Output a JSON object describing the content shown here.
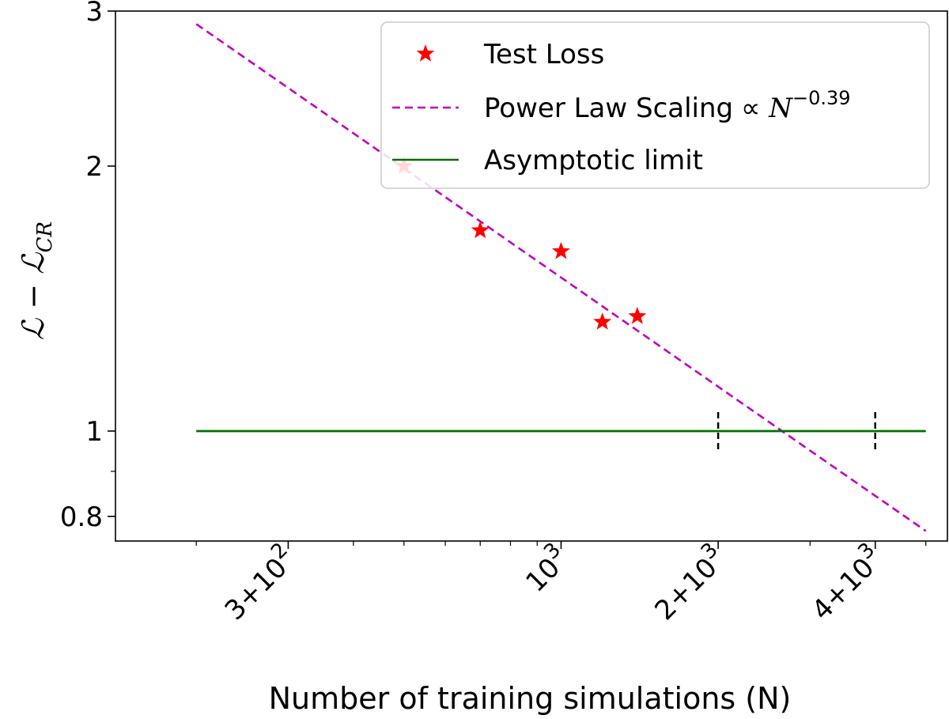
{
  "chart_data": {
    "type": "scatter",
    "xscale": "log",
    "yscale": "log",
    "xlim": [
      140,
      5500
    ],
    "ylim": [
      0.75,
      3.0
    ],
    "xlabel": "Number of training simulations (N)",
    "ylabel": {
      "main": "ℒ − ℒ",
      "sub": "CR"
    },
    "yticks": [
      {
        "value": 3,
        "label": "3"
      },
      {
        "value": 2,
        "label": "2"
      },
      {
        "value": 1,
        "label": "1"
      },
      {
        "value": 0.8,
        "label": "0.8"
      }
    ],
    "yminor": [
      0.9
    ],
    "xticks": [
      {
        "value": 300,
        "mant": "3+",
        "base": "10",
        "exp": "2"
      },
      {
        "value": 1000,
        "mant": "",
        "base": "10",
        "exp": "3"
      },
      {
        "value": 2000,
        "mant": "2+",
        "base": "10",
        "exp": "3"
      },
      {
        "value": 4000,
        "mant": "4+",
        "base": "10",
        "exp": "3"
      }
    ],
    "xminor": [
      200,
      400,
      500,
      600,
      700,
      800,
      900,
      3000,
      5000
    ],
    "series": [
      {
        "name": "Test Loss",
        "kind": "scatter",
        "marker": "star",
        "color": "#ff0000",
        "x": [
          500,
          700,
          1000,
          1200,
          1400
        ],
        "y": [
          2.0,
          1.69,
          1.6,
          1.33,
          1.35
        ]
      },
      {
        "name": "Power Law Scaling",
        "name_suffix": {
          "prefix": "∝ ",
          "base": "N",
          "exp": "−0.39"
        },
        "kind": "line",
        "style": "dashed",
        "color": "#c000c0",
        "x": [
          200,
          5000
        ],
        "y": [
          2.9,
          0.77
        ]
      },
      {
        "name": "Asymptotic limit",
        "kind": "line",
        "style": "solid",
        "color": "#007000",
        "x": [
          200,
          5000
        ],
        "y": [
          1.0,
          1.0
        ]
      }
    ],
    "error_markers": {
      "x": [
        2000,
        4000
      ],
      "y": 1.0,
      "color": "#000000"
    },
    "legend_position": "top-right"
  }
}
